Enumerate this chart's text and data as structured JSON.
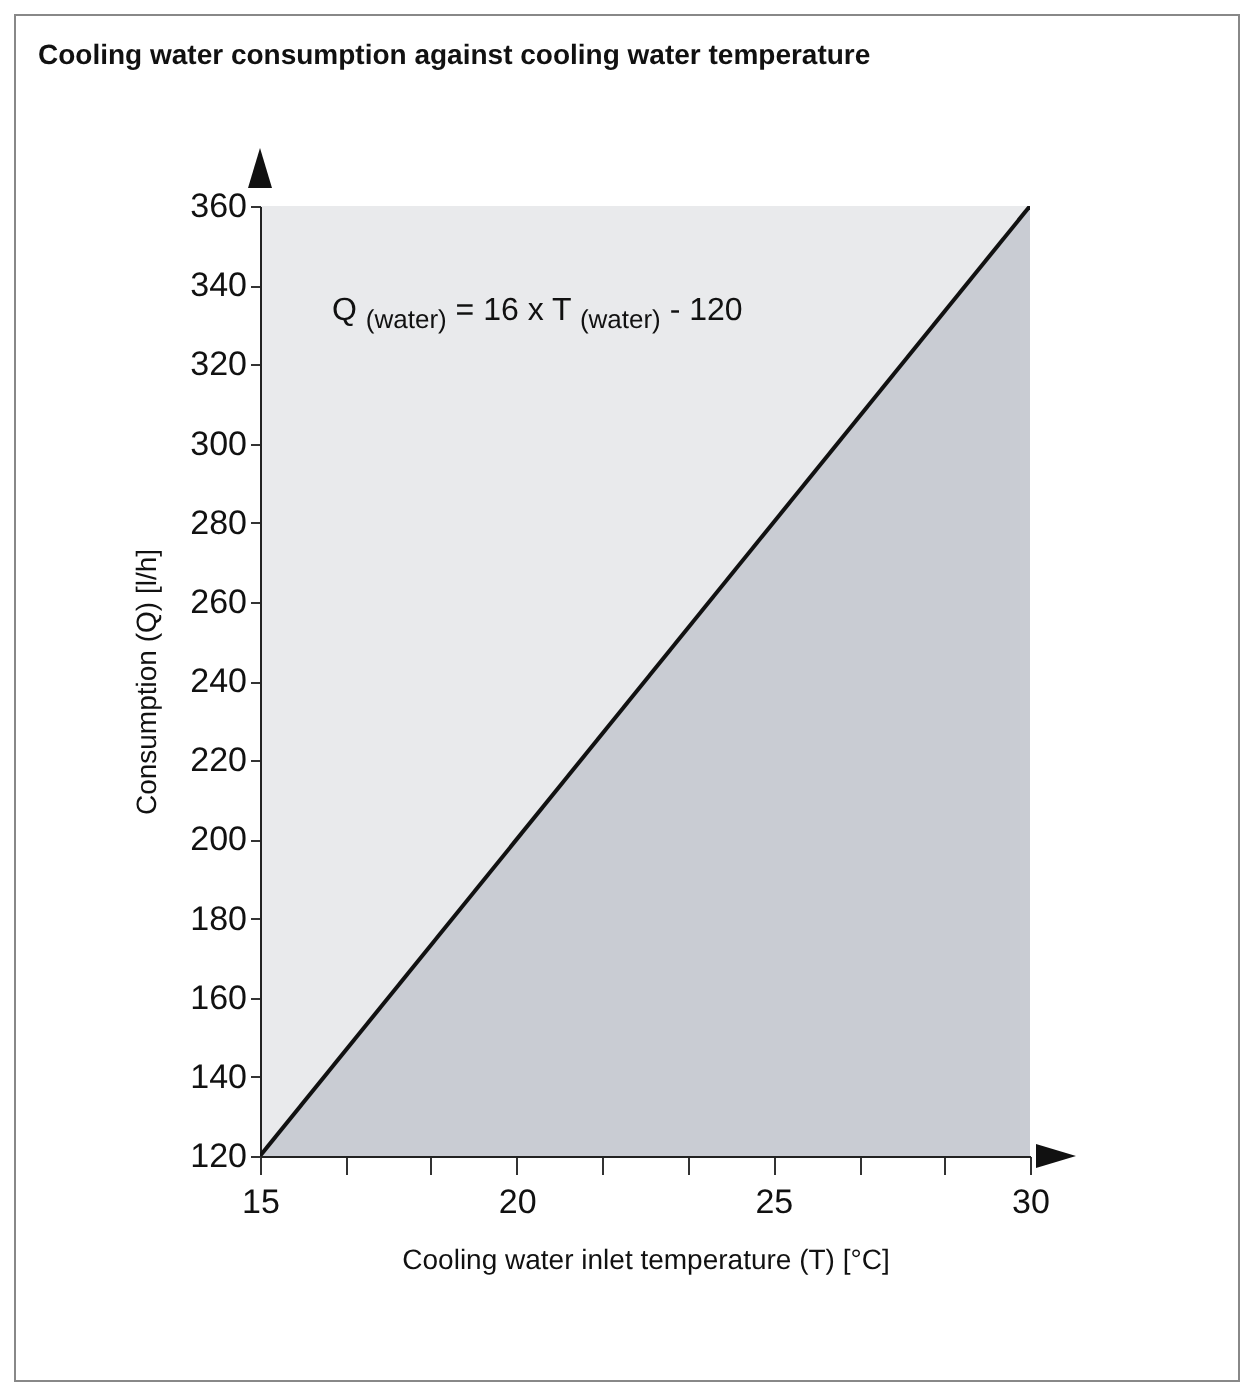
{
  "chart_data": {
    "type": "area",
    "title": "Cooling water consumption against cooling water temperature",
    "xlabel": "Cooling water inlet temperature (T) [°C]",
    "ylabel": "Consumption (Q) [l/h]",
    "x": [
      15,
      30
    ],
    "series": [
      {
        "color": "#c9ccd3",
        "values": [
          120,
          360
        ]
      }
    ],
    "xlim": [
      15,
      30
    ],
    "xticks": [
      15,
      {
        "value": 16.67,
        "label": null
      },
      {
        "value": 18.33,
        "label": null
      },
      20,
      {
        "value": 21.67,
        "label": null
      },
      {
        "value": 23.33,
        "label": null
      },
      25,
      {
        "value": 26.67,
        "label": null
      },
      {
        "value": 28.33,
        "label": null
      },
      30
    ],
    "ylim": [
      120,
      360
    ],
    "yticks": [
      120,
      140,
      160,
      180,
      200,
      220,
      240,
      260,
      280,
      300,
      320,
      340,
      360
    ],
    "annotations": [
      "Q$_{(water)}$ = 16 x T$_{(water)}$ - 120"
    ],
    "grid": false
  }
}
